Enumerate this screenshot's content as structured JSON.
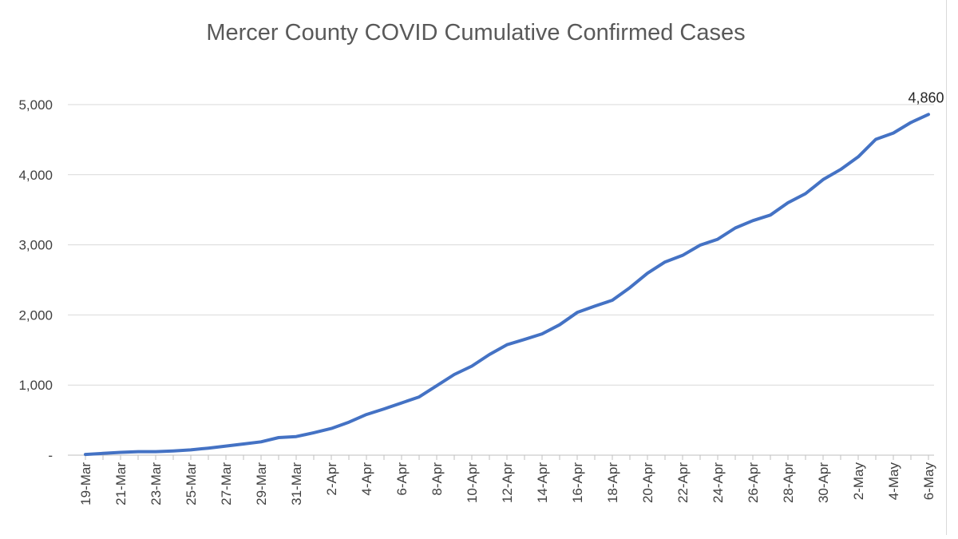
{
  "chart_data": {
    "type": "line",
    "title": "Mercer County COVID Cumulative Confirmed Cases",
    "xlabel": "",
    "ylabel": "",
    "ylim": [
      0,
      5000
    ],
    "yticks": [
      0,
      1000,
      2000,
      3000,
      4000,
      5000
    ],
    "ytick_labels": [
      "-",
      "1,000",
      "2,000",
      "3,000",
      "4,000",
      "5,000"
    ],
    "grid": true,
    "legend": "none",
    "x_tick_labels": [
      "19-Mar",
      "21-Mar",
      "23-Mar",
      "25-Mar",
      "27-Mar",
      "29-Mar",
      "31-Mar",
      "2-Apr",
      "4-Apr",
      "6-Apr",
      "8-Apr",
      "10-Apr",
      "12-Apr",
      "14-Apr",
      "16-Apr",
      "18-Apr",
      "20-Apr",
      "22-Apr",
      "24-Apr",
      "26-Apr",
      "28-Apr",
      "30-Apr",
      "2-May",
      "4-May",
      "6-May"
    ],
    "x": [
      "19-Mar",
      "20-Mar",
      "21-Mar",
      "22-Mar",
      "23-Mar",
      "24-Mar",
      "25-Mar",
      "26-Mar",
      "27-Mar",
      "28-Mar",
      "29-Mar",
      "30-Mar",
      "31-Mar",
      "1-Apr",
      "2-Apr",
      "3-Apr",
      "4-Apr",
      "5-Apr",
      "6-Apr",
      "7-Apr",
      "8-Apr",
      "9-Apr",
      "10-Apr",
      "11-Apr",
      "12-Apr",
      "13-Apr",
      "14-Apr",
      "15-Apr",
      "16-Apr",
      "17-Apr",
      "18-Apr",
      "19-Apr",
      "20-Apr",
      "21-Apr",
      "22-Apr",
      "23-Apr",
      "24-Apr",
      "25-Apr",
      "26-Apr",
      "27-Apr",
      "28-Apr",
      "29-Apr",
      "30-Apr",
      "1-May",
      "2-May",
      "3-May",
      "4-May",
      "5-May",
      "6-May"
    ],
    "series": [
      {
        "color": "#4472C4",
        "values": [
          10,
          25,
          40,
          50,
          50,
          60,
          75,
          100,
          130,
          160,
          190,
          250,
          265,
          320,
          380,
          470,
          580,
          660,
          745,
          830,
          990,
          1150,
          1270,
          1435,
          1575,
          1650,
          1730,
          1860,
          2035,
          2125,
          2210,
          2390,
          2595,
          2755,
          2850,
          2995,
          3080,
          3240,
          3345,
          3425,
          3600,
          3730,
          3930,
          4075,
          4255,
          4505,
          4595,
          4745,
          4860
        ]
      }
    ],
    "data_labels": [
      {
        "x": "6-May",
        "text": "4,860"
      }
    ]
  }
}
